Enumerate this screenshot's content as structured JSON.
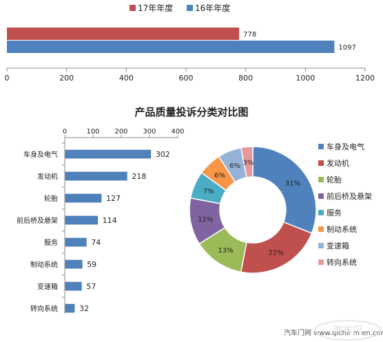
{
  "chart_data": [
    {
      "type": "bar",
      "orientation": "horizontal",
      "series": [
        {
          "name": "17年年度",
          "value": 778,
          "color": "#c0504d"
        },
        {
          "name": "16年年度",
          "value": 1097,
          "color": "#4f81bd"
        }
      ],
      "xlim": [
        0,
        1200
      ],
      "xticks": [
        0,
        200,
        400,
        600,
        800,
        1000,
        1200
      ],
      "legend": "top",
      "grid": false
    },
    {
      "type": "bar",
      "orientation": "horizontal",
      "title": "产品质量投诉分类对比图",
      "categories": [
        "车身及电气",
        "发动机",
        "轮胎",
        "前后桥及悬架",
        "服务",
        "制动系统",
        "变速箱",
        "转向系统"
      ],
      "values": [
        302,
        218,
        127,
        114,
        74,
        59,
        57,
        32
      ],
      "color": "#4f81bd",
      "xlim": [
        0,
        400
      ],
      "xticks": [
        0,
        100,
        200,
        300,
        400
      ],
      "xaxis_position": "top",
      "grid": false
    },
    {
      "type": "pie",
      "donut": true,
      "categories": [
        "车身及电气",
        "发动机",
        "轮胎",
        "前后桥及悬架",
        "服务",
        "制动系统",
        "变速箱",
        "转向系统"
      ],
      "values": [
        31,
        22,
        13,
        12,
        7,
        6,
        6,
        3
      ],
      "labels": [
        "31%",
        "22%",
        "13%",
        "12%",
        "7%",
        "6%",
        "6%",
        "3%"
      ],
      "colors": [
        "#4f81bd",
        "#c0504d",
        "#9bbb59",
        "#8064a2",
        "#4bacc6",
        "#f79646",
        "#95b3d7",
        "#e6999a"
      ],
      "legend": "right"
    }
  ],
  "watermark": {
    "text": "汽车门网 www.qiche m en.com",
    "logo": "汽车门"
  }
}
